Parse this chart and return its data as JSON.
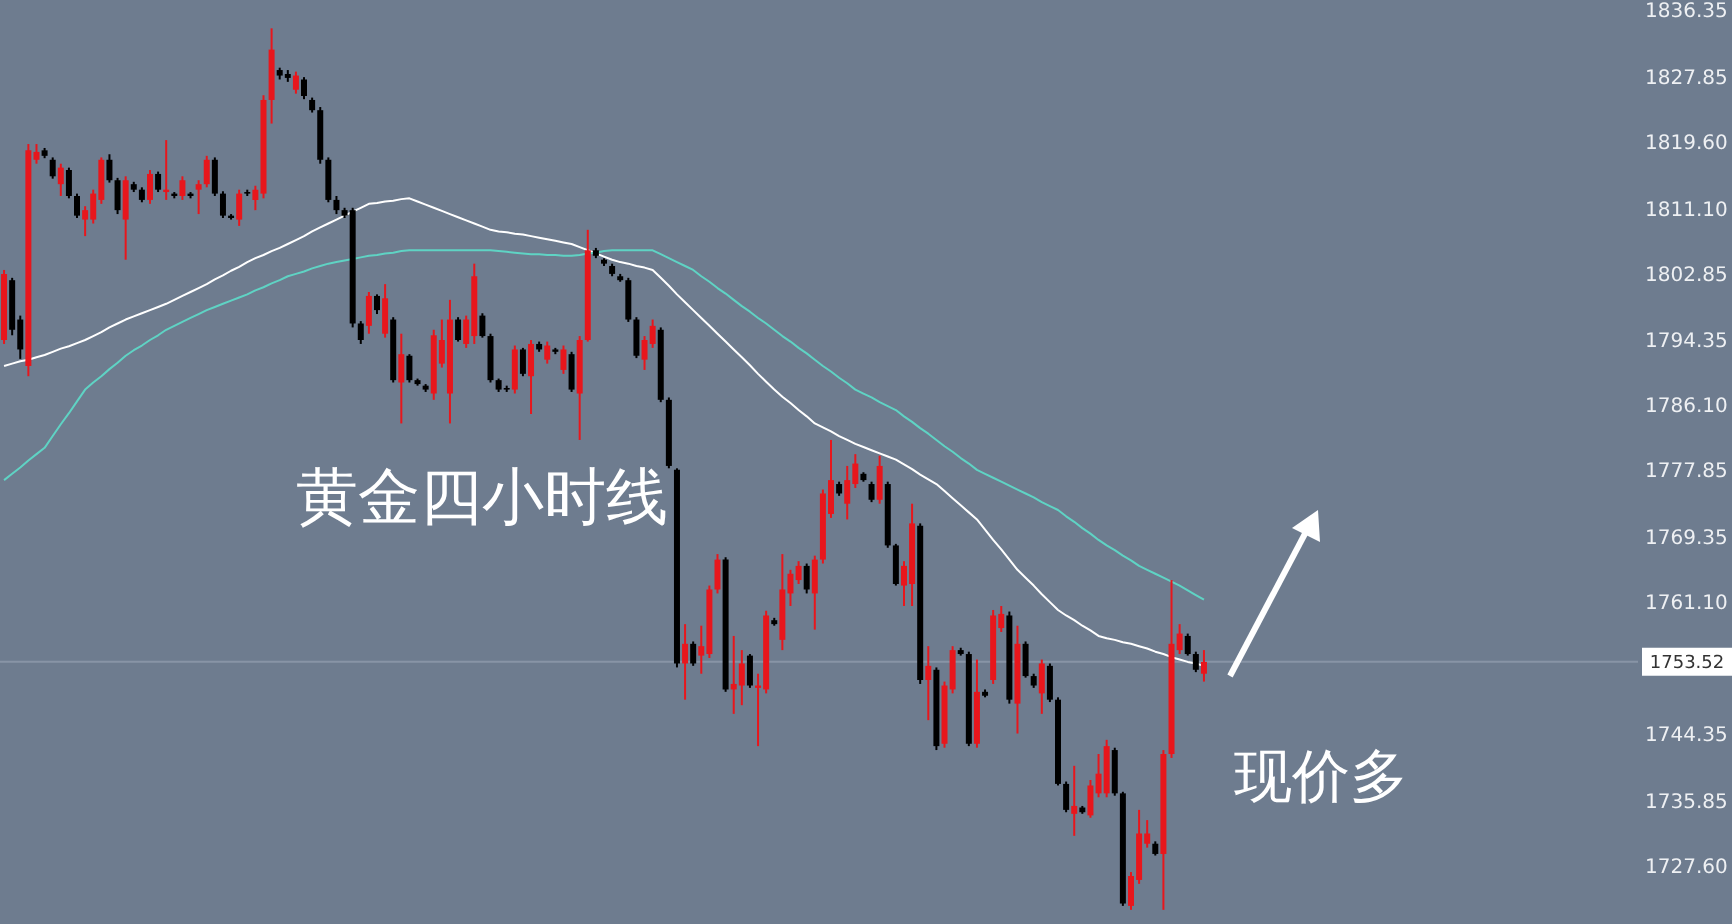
{
  "chart_data": {
    "type": "candlestick",
    "tick_labels": "y",
    "categories": [
      null,
      null,
      null,
      null,
      null,
      null,
      null,
      null,
      null,
      null,
      null,
      null,
      null,
      null,
      null,
      null,
      null,
      null,
      null,
      null,
      null,
      null,
      null,
      null,
      null,
      null,
      null,
      null,
      null,
      null,
      null,
      null,
      null,
      null,
      null,
      null,
      null,
      null,
      null,
      null,
      null,
      null,
      null,
      null,
      null,
      null,
      null,
      null,
      null,
      null,
      null,
      null,
      null,
      null,
      null,
      null,
      null,
      null,
      null,
      null,
      null,
      null,
      null,
      null,
      null,
      null,
      null,
      null,
      null,
      null,
      null,
      null,
      null,
      null,
      null,
      null,
      null,
      null,
      null,
      null,
      null,
      null,
      null,
      null,
      null,
      null,
      null,
      null,
      null,
      null,
      null,
      null,
      null,
      null,
      null,
      null,
      null,
      null,
      null,
      null,
      null,
      null,
      null,
      null,
      null,
      null,
      null,
      null,
      null,
      null,
      null,
      null,
      null,
      null,
      null,
      null,
      null,
      null,
      null,
      null,
      null,
      null,
      null,
      null,
      null,
      null,
      null,
      null,
      null,
      null,
      null,
      null,
      null,
      null,
      null,
      null,
      null,
      null,
      null,
      null,
      null,
      null,
      null,
      null,
      null,
      null,
      null,
      null,
      null
    ],
    "ohlc": [
      [
        1794.4,
        1803.3,
        1793.9,
        1802.8
      ],
      [
        1802.0,
        1802.3,
        1795.0,
        1795.7
      ],
      [
        1797.0,
        1797.5,
        1792.0,
        1793.2
      ],
      [
        1791.1,
        1819.3,
        1789.8,
        1818.5
      ],
      [
        1817.3,
        1819.3,
        1816.8,
        1818.3
      ],
      [
        1818.5,
        1818.8,
        1817.5,
        1817.8
      ],
      [
        1817.3,
        1817.6,
        1814.9,
        1815.2
      ],
      [
        1814.2,
        1816.8,
        1812.7,
        1816.3
      ],
      [
        1816.0,
        1816.3,
        1812.4,
        1812.7
      ],
      [
        1812.7,
        1813.0,
        1809.9,
        1810.2
      ],
      [
        1809.7,
        1811.4,
        1807.6,
        1810.9
      ],
      [
        1809.7,
        1813.5,
        1809.2,
        1813.0
      ],
      [
        1812.2,
        1817.6,
        1811.7,
        1817.3
      ],
      [
        1817.3,
        1818.0,
        1814.4,
        1814.7
      ],
      [
        1814.7,
        1815.0,
        1810.4,
        1810.9
      ],
      [
        1809.7,
        1815.2,
        1804.6,
        1814.7
      ],
      [
        1814.2,
        1814.5,
        1813.2,
        1813.5
      ],
      [
        1813.5,
        1813.8,
        1811.9,
        1812.2
      ],
      [
        1812.2,
        1816.0,
        1811.7,
        1815.5
      ],
      [
        1815.5,
        1815.8,
        1813.2,
        1813.5
      ],
      [
        1813.2,
        1819.8,
        1812.2,
        1813.5
      ],
      [
        1813.0,
        1813.2,
        1812.4,
        1812.7
      ],
      [
        1812.7,
        1815.2,
        1812.2,
        1814.7
      ],
      [
        1813.0,
        1813.2,
        1812.4,
        1812.7
      ],
      [
        1813.5,
        1814.7,
        1810.4,
        1814.2
      ],
      [
        1814.2,
        1817.8,
        1813.8,
        1817.3
      ],
      [
        1817.3,
        1817.6,
        1812.7,
        1813.0
      ],
      [
        1813.0,
        1813.3,
        1809.9,
        1810.2
      ],
      [
        1810.2,
        1810.4,
        1809.7,
        1809.9
      ],
      [
        1809.7,
        1813.5,
        1808.9,
        1813.0
      ],
      [
        1813.2,
        1813.5,
        1812.7,
        1813.0
      ],
      [
        1812.2,
        1814.0,
        1810.9,
        1813.5
      ],
      [
        1813.0,
        1825.5,
        1812.4,
        1824.9
      ],
      [
        1824.9,
        1834.0,
        1821.9,
        1831.3
      ],
      [
        1828.7,
        1829.0,
        1827.5,
        1828.0
      ],
      [
        1828.2,
        1828.7,
        1827.2,
        1827.7
      ],
      [
        1826.2,
        1828.5,
        1825.7,
        1828.0
      ],
      [
        1827.5,
        1827.8,
        1825.0,
        1825.4
      ],
      [
        1824.9,
        1825.2,
        1823.3,
        1823.6
      ],
      [
        1823.6,
        1824.0,
        1816.8,
        1817.3
      ],
      [
        1817.3,
        1817.6,
        1811.9,
        1812.2
      ],
      [
        1812.2,
        1812.7,
        1810.4,
        1810.9
      ],
      [
        1810.9,
        1811.2,
        1809.9,
        1810.2
      ],
      [
        1810.9,
        1811.2,
        1796.0,
        1796.5
      ],
      [
        1796.5,
        1796.8,
        1793.9,
        1794.4
      ],
      [
        1796.2,
        1800.5,
        1795.2,
        1800.0
      ],
      [
        1800.0,
        1800.2,
        1797.7,
        1798.2
      ],
      [
        1795.2,
        1801.5,
        1794.7,
        1799.7
      ],
      [
        1797.0,
        1797.3,
        1789.0,
        1789.3
      ],
      [
        1789.0,
        1795.2,
        1783.8,
        1792.6
      ],
      [
        1792.4,
        1792.6,
        1789.0,
        1789.3
      ],
      [
        1789.3,
        1789.5,
        1788.6,
        1788.8
      ],
      [
        1788.6,
        1788.8,
        1787.8,
        1788.1
      ],
      [
        1787.6,
        1795.7,
        1786.8,
        1795.0
      ],
      [
        1791.4,
        1797.0,
        1790.9,
        1794.4
      ],
      [
        1787.6,
        1799.5,
        1783.8,
        1797.0
      ],
      [
        1797.0,
        1797.3,
        1794.2,
        1794.4
      ],
      [
        1793.9,
        1797.5,
        1793.4,
        1797.0
      ],
      [
        1794.9,
        1804.1,
        1793.9,
        1802.5
      ],
      [
        1797.5,
        1797.8,
        1794.7,
        1794.9
      ],
      [
        1794.9,
        1795.2,
        1789.0,
        1789.3
      ],
      [
        1789.3,
        1789.5,
        1787.8,
        1788.1
      ],
      [
        1788.3,
        1788.6,
        1787.8,
        1788.1
      ],
      [
        1788.1,
        1793.7,
        1787.6,
        1793.2
      ],
      [
        1793.2,
        1793.4,
        1789.8,
        1790.1
      ],
      [
        1789.8,
        1794.4,
        1785.0,
        1793.9
      ],
      [
        1793.9,
        1794.2,
        1792.9,
        1793.2
      ],
      [
        1791.9,
        1794.2,
        1791.4,
        1793.7
      ],
      [
        1793.2,
        1793.4,
        1792.6,
        1792.9
      ],
      [
        1790.6,
        1793.7,
        1790.1,
        1793.2
      ],
      [
        1792.6,
        1792.9,
        1787.8,
        1788.1
      ],
      [
        1787.6,
        1794.9,
        1781.7,
        1794.4
      ],
      [
        1794.4,
        1808.4,
        1794.2,
        1805.8
      ],
      [
        1805.8,
        1806.1,
        1804.8,
        1805.1
      ],
      [
        1804.6,
        1804.8,
        1803.8,
        1804.1
      ],
      [
        1803.8,
        1804.1,
        1802.5,
        1802.8
      ],
      [
        1802.5,
        1802.8,
        1801.8,
        1802.0
      ],
      [
        1802.0,
        1802.3,
        1796.7,
        1797.0
      ],
      [
        1797.0,
        1797.3,
        1792.1,
        1792.4
      ],
      [
        1791.9,
        1794.9,
        1790.6,
        1794.4
      ],
      [
        1793.9,
        1797.0,
        1793.4,
        1796.2
      ],
      [
        1795.7,
        1796.0,
        1786.5,
        1786.8
      ],
      [
        1786.8,
        1787.1,
        1778.1,
        1778.4
      ],
      [
        1777.9,
        1778.1,
        1752.8,
        1753.3
      ],
      [
        1753.3,
        1758.3,
        1748.7,
        1755.8
      ],
      [
        1755.8,
        1756.1,
        1753.0,
        1753.3
      ],
      [
        1754.3,
        1758.1,
        1752.0,
        1755.5
      ],
      [
        1754.5,
        1763.2,
        1754.0,
        1762.7
      ],
      [
        1762.7,
        1767.2,
        1762.2,
        1766.5
      ],
      [
        1766.5,
        1766.8,
        1749.7,
        1750.0
      ],
      [
        1750.0,
        1756.8,
        1746.9,
        1750.7
      ],
      [
        1750.5,
        1755.0,
        1748.0,
        1753.3
      ],
      [
        1754.3,
        1754.5,
        1750.2,
        1750.5
      ],
      [
        1750.2,
        1752.0,
        1742.8,
        1750.5
      ],
      [
        1750.0,
        1760.0,
        1749.5,
        1759.4
      ],
      [
        1758.8,
        1759.1,
        1758.1,
        1758.3
      ],
      [
        1756.3,
        1767.2,
        1755.0,
        1762.7
      ],
      [
        1762.2,
        1765.2,
        1760.6,
        1764.7
      ],
      [
        1763.9,
        1766.3,
        1763.4,
        1765.7
      ],
      [
        1765.7,
        1766.0,
        1762.2,
        1762.7
      ],
      [
        1762.2,
        1767.0,
        1757.6,
        1766.5
      ],
      [
        1766.5,
        1775.4,
        1766.0,
        1774.9
      ],
      [
        1772.3,
        1781.7,
        1771.8,
        1776.6
      ],
      [
        1776.1,
        1776.4,
        1774.6,
        1774.9
      ],
      [
        1773.6,
        1778.4,
        1771.6,
        1776.6
      ],
      [
        1776.1,
        1779.9,
        1775.6,
        1778.7
      ],
      [
        1777.4,
        1777.6,
        1776.4,
        1776.6
      ],
      [
        1776.1,
        1776.4,
        1773.8,
        1774.1
      ],
      [
        1774.1,
        1779.7,
        1773.6,
        1778.4
      ],
      [
        1776.1,
        1776.4,
        1768.0,
        1768.3
      ],
      [
        1768.3,
        1768.5,
        1763.2,
        1763.4
      ],
      [
        1763.2,
        1766.3,
        1760.6,
        1765.7
      ],
      [
        1763.4,
        1773.6,
        1760.6,
        1771.1
      ],
      [
        1770.8,
        1771.1,
        1750.7,
        1751.2
      ],
      [
        1751.2,
        1755.5,
        1746.1,
        1753.0
      ],
      [
        1752.5,
        1752.8,
        1742.3,
        1742.8
      ],
      [
        1743.1,
        1751.0,
        1742.6,
        1750.5
      ],
      [
        1750.0,
        1755.5,
        1749.5,
        1755.0
      ],
      [
        1755.0,
        1755.3,
        1754.3,
        1754.5
      ],
      [
        1754.5,
        1754.8,
        1742.8,
        1743.1
      ],
      [
        1743.1,
        1753.8,
        1742.6,
        1749.7
      ],
      [
        1749.7,
        1750.0,
        1749.0,
        1749.2
      ],
      [
        1751.2,
        1760.1,
        1750.7,
        1759.4
      ],
      [
        1757.8,
        1760.6,
        1757.3,
        1759.6
      ],
      [
        1759.4,
        1759.9,
        1748.2,
        1748.7
      ],
      [
        1748.2,
        1758.1,
        1744.4,
        1755.8
      ],
      [
        1755.8,
        1756.1,
        1751.5,
        1751.7
      ],
      [
        1751.7,
        1752.0,
        1750.2,
        1750.5
      ],
      [
        1749.5,
        1753.8,
        1746.9,
        1753.3
      ],
      [
        1753.0,
        1753.3,
        1748.4,
        1748.7
      ],
      [
        1748.7,
        1749.0,
        1737.8,
        1738.0
      ],
      [
        1738.0,
        1738.3,
        1734.4,
        1734.7
      ],
      [
        1734.2,
        1740.3,
        1731.4,
        1735.2
      ],
      [
        1735.0,
        1735.2,
        1734.2,
        1734.4
      ],
      [
        1734.0,
        1738.5,
        1733.7,
        1737.8
      ],
      [
        1736.8,
        1741.8,
        1736.3,
        1739.3
      ],
      [
        1736.8,
        1743.6,
        1736.3,
        1742.8
      ],
      [
        1742.3,
        1742.6,
        1736.5,
        1736.8
      ],
      [
        1736.8,
        1737.0,
        1722.5,
        1722.8
      ],
      [
        1722.5,
        1726.8,
        1722.0,
        1726.3
      ],
      [
        1725.8,
        1734.7,
        1725.3,
        1731.7
      ],
      [
        1730.4,
        1733.4,
        1729.9,
        1731.7
      ],
      [
        1730.4,
        1730.7,
        1728.9,
        1729.1
      ],
      [
        1729.1,
        1742.3,
        1722.0,
        1741.8
      ],
      [
        1741.8,
        1763.9,
        1741.3,
        1755.8
      ],
      [
        1755.0,
        1758.3,
        1754.5,
        1757.1
      ],
      [
        1756.8,
        1757.1,
        1754.3,
        1754.5
      ],
      [
        1754.5,
        1754.8,
        1752.2,
        1752.5
      ],
      [
        1752.0,
        1755.0,
        1751.0,
        1753.5
      ]
    ],
    "series": [
      {
        "type": "line",
        "color": "#ffffff",
        "values": [
          1791.1,
          1791.4,
          1791.7,
          1791.9,
          1792.2,
          1792.5,
          1792.9,
          1793.3,
          1793.6,
          1794.0,
          1794.4,
          1794.9,
          1795.4,
          1796.0,
          1796.5,
          1797.0,
          1797.4,
          1797.8,
          1798.2,
          1798.6,
          1799.0,
          1799.5,
          1800.0,
          1800.5,
          1801.0,
          1801.5,
          1802.1,
          1802.6,
          1803.2,
          1803.7,
          1804.3,
          1804.8,
          1805.2,
          1805.7,
          1806.1,
          1806.6,
          1807.1,
          1807.6,
          1808.2,
          1808.7,
          1809.2,
          1809.7,
          1810.2,
          1810.7,
          1811.2,
          1811.7,
          1811.8,
          1812.0,
          1812.1,
          1812.3,
          1812.4,
          1812.0,
          1811.6,
          1811.2,
          1810.8,
          1810.4,
          1810.0,
          1809.6,
          1809.2,
          1808.8,
          1808.4,
          1808.2,
          1808.1,
          1807.9,
          1807.8,
          1807.6,
          1807.4,
          1807.2,
          1807.0,
          1806.8,
          1806.6,
          1806.2,
          1805.8,
          1805.4,
          1805.0,
          1804.6,
          1804.3,
          1804.1,
          1803.8,
          1803.6,
          1803.3,
          1802.3,
          1801.3,
          1800.2,
          1799.2,
          1798.2,
          1797.2,
          1796.2,
          1795.2,
          1794.2,
          1793.2,
          1792.2,
          1791.2,
          1790.1,
          1789.1,
          1788.1,
          1787.2,
          1786.4,
          1785.5,
          1784.7,
          1783.8,
          1783.3,
          1782.8,
          1782.2,
          1781.7,
          1781.2,
          1780.8,
          1780.4,
          1780.0,
          1779.6,
          1779.2,
          1778.6,
          1778.0,
          1777.3,
          1776.7,
          1776.1,
          1775.2,
          1774.3,
          1773.4,
          1772.5,
          1771.6,
          1770.3,
          1769.0,
          1767.8,
          1766.5,
          1765.2,
          1764.2,
          1763.2,
          1762.1,
          1761.1,
          1760.1,
          1759.4,
          1758.8,
          1758.1,
          1757.5,
          1756.8,
          1756.5,
          1756.3,
          1756.0,
          1755.8,
          1755.5,
          1755.2,
          1754.8,
          1754.5,
          1754.1,
          1753.8,
          1753.5,
          1753.3,
          1753.0
        ]
      },
      {
        "type": "line",
        "color": "#5fd3c4",
        "values": [
          1776.6,
          1777.4,
          1778.2,
          1779.1,
          1779.9,
          1780.7,
          1782.2,
          1783.7,
          1785.1,
          1786.6,
          1788.1,
          1789.0,
          1789.8,
          1790.7,
          1791.5,
          1792.4,
          1793.1,
          1793.7,
          1794.4,
          1795.0,
          1795.7,
          1796.2,
          1796.7,
          1797.2,
          1797.7,
          1798.2,
          1798.6,
          1799.0,
          1799.4,
          1799.8,
          1800.2,
          1800.7,
          1801.1,
          1801.6,
          1802.0,
          1802.5,
          1802.8,
          1803.1,
          1803.5,
          1803.8,
          1804.1,
          1804.3,
          1804.5,
          1804.7,
          1804.9,
          1805.1,
          1805.2,
          1805.4,
          1805.5,
          1805.7,
          1805.8,
          1805.8,
          1805.8,
          1805.8,
          1805.8,
          1805.8,
          1805.8,
          1805.8,
          1805.8,
          1805.8,
          1805.8,
          1805.7,
          1805.6,
          1805.5,
          1805.4,
          1805.3,
          1805.3,
          1805.2,
          1805.2,
          1805.1,
          1805.1,
          1805.2,
          1805.4,
          1805.5,
          1805.7,
          1805.8,
          1805.8,
          1805.8,
          1805.8,
          1805.8,
          1805.8,
          1805.3,
          1804.8,
          1804.3,
          1803.8,
          1803.3,
          1802.5,
          1801.8,
          1801.0,
          1800.3,
          1799.5,
          1798.7,
          1798.0,
          1797.2,
          1796.5,
          1795.7,
          1794.9,
          1794.2,
          1793.4,
          1792.7,
          1791.9,
          1791.1,
          1790.4,
          1789.6,
          1788.9,
          1788.1,
          1787.6,
          1787.1,
          1786.5,
          1786.0,
          1785.5,
          1784.7,
          1784.0,
          1783.2,
          1782.5,
          1781.7,
          1780.9,
          1780.2,
          1779.4,
          1778.7,
          1777.9,
          1777.4,
          1776.9,
          1776.4,
          1775.9,
          1775.4,
          1774.9,
          1774.4,
          1773.8,
          1773.3,
          1772.8,
          1772.0,
          1771.3,
          1770.5,
          1769.8,
          1769.0,
          1768.3,
          1767.7,
          1767.0,
          1766.4,
          1765.7,
          1765.2,
          1764.7,
          1764.2,
          1763.7,
          1763.2,
          1762.6,
          1762.0,
          1761.4
        ]
      }
    ],
    "ylim": [
      1720.2,
      1837.6
    ],
    "yticks": [
      1836.35,
      1827.85,
      {
        "value": 1819.6,
        "label": "1819.60"
      },
      {
        "value": 1811.1,
        "label": "1811.10"
      },
      1802.85,
      1794.35,
      {
        "value": 1786.1,
        "label": "1786.10"
      },
      1777.85,
      1769.35,
      {
        "value": 1761.1,
        "label": "1761.10"
      },
      1744.35,
      1735.85,
      {
        "value": 1727.6,
        "label": "1727.60"
      }
    ],
    "ref_lines": [
      {
        "axis": "y",
        "value": 1753.52,
        "label": "1753.52",
        "color": "#8894a6"
      }
    ],
    "annotations": [
      "黄金四小时线",
      "现价多"
    ]
  }
}
